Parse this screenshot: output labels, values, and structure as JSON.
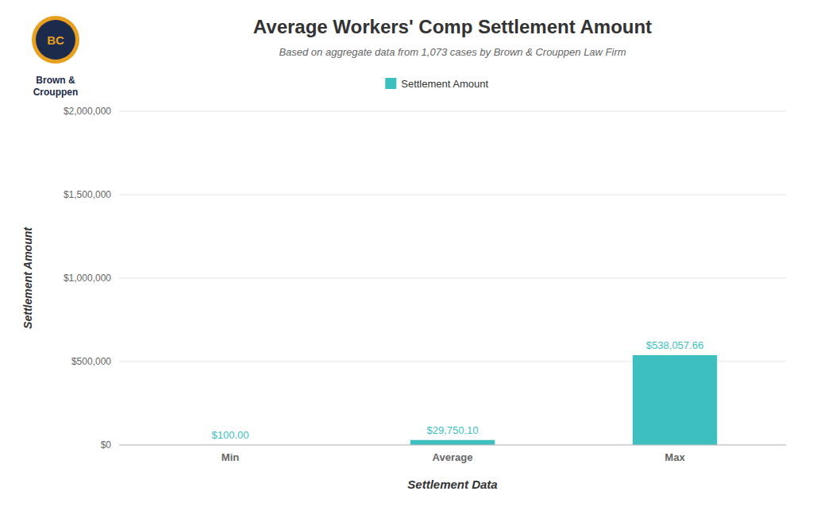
{
  "chart_data": {
    "type": "bar",
    "title": "Average Workers' Comp Settlement Amount",
    "subtitle": "Based on aggregate data from 1,073 cases by Brown & Crouppen Law Firm",
    "categories": [
      "Min",
      "Average",
      "Max"
    ],
    "series": [
      {
        "name": "Settlement Amount",
        "color": "#3DBFBF",
        "values": [
          100.0,
          29750.1,
          538057.66
        ],
        "value_labels": [
          "$100.00",
          "$29,750.10",
          "$538,057.66"
        ]
      }
    ],
    "data_labels": true,
    "xlabel": "Settlement Data",
    "ylabel": "Settlement Amount",
    "ylim": [
      0,
      2000000
    ],
    "yticks": [
      {
        "value": 0,
        "label": "$0"
      },
      {
        "value": 500000,
        "label": "$500,000"
      },
      {
        "value": 1000000,
        "label": "$1,000,000"
      },
      {
        "value": 1500000,
        "label": "$1,500,000"
      },
      {
        "value": 2000000,
        "label": "$2,000,000"
      }
    ],
    "grid": true,
    "legend": "top",
    "annotations": [
      "BC",
      "Brown &\nCrouppen"
    ]
  }
}
